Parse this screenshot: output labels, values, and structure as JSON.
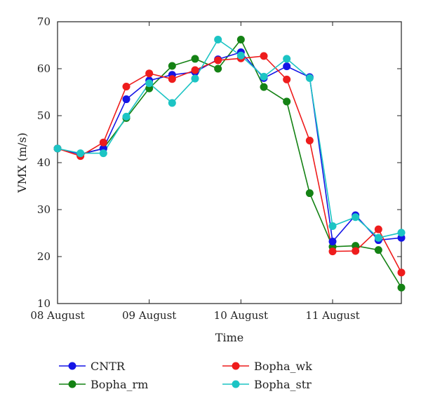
{
  "chart_data": {
    "type": "line",
    "xlabel": "Time",
    "ylabel": "VMX (m/s)",
    "ylim": [
      10,
      70
    ],
    "yticks": [
      10,
      20,
      30,
      40,
      50,
      60,
      70
    ],
    "xlim": [
      0,
      3.75
    ],
    "xticks": [
      {
        "x": 0,
        "label": "08 August"
      },
      {
        "x": 1,
        "label": "09 August"
      },
      {
        "x": 2,
        "label": "10 August"
      },
      {
        "x": 3,
        "label": "11 August"
      }
    ],
    "x": [
      0,
      0.25,
      0.5,
      0.75,
      1,
      1.25,
      1.5,
      1.75,
      2,
      2.25,
      2.5,
      2.75,
      3,
      3.25,
      3.5,
      3.75
    ],
    "legend_position": "bottom",
    "series": [
      {
        "name": "CNTR",
        "color": "#1515e6",
        "values": [
          43,
          41.8,
          43,
          53.5,
          57.5,
          58.7,
          59.3,
          62,
          63.5,
          58,
          60.5,
          58.2,
          23.2,
          28.8,
          23.5,
          24
        ]
      },
      {
        "name": "Bopha_wk",
        "color": "#ee1c1c",
        "values": [
          43,
          41.4,
          44.3,
          56.2,
          59,
          57.8,
          59.7,
          61.8,
          62.2,
          62.7,
          57.7,
          44.7,
          21.1,
          21.2,
          25.8,
          16.6
        ]
      },
      {
        "name": "Bopha_rm",
        "color": "#148214",
        "values": [
          43,
          41.8,
          43,
          49.5,
          55.8,
          60.6,
          62.1,
          60,
          66.2,
          56.1,
          53,
          33.5,
          22.1,
          22.3,
          21.4,
          13.4
        ]
      },
      {
        "name": "Bopha_str",
        "color": "#1cc4c4",
        "values": [
          43,
          42,
          42,
          49.8,
          56.9,
          52.7,
          57.9,
          66.2,
          62.8,
          58.3,
          62.1,
          58,
          26.5,
          28.4,
          24,
          25.1
        ]
      }
    ]
  }
}
